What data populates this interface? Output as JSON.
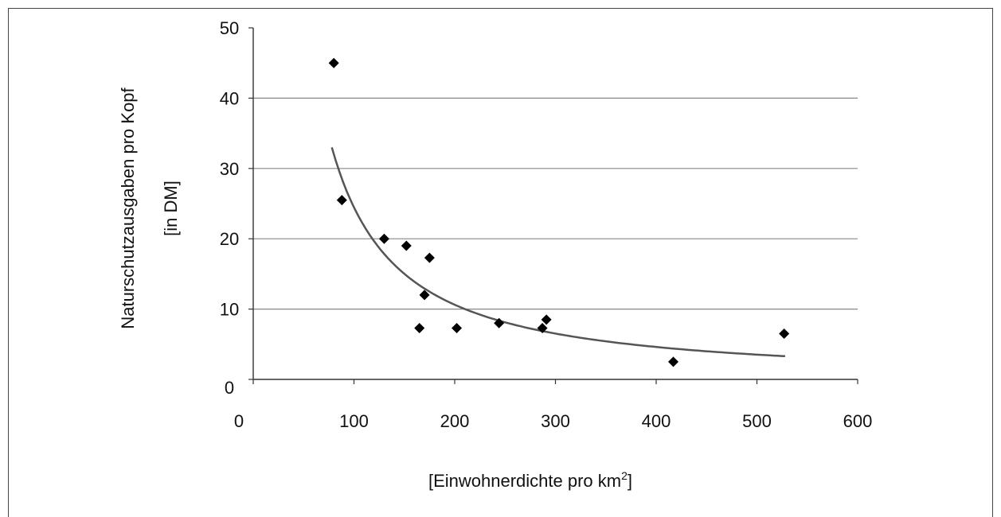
{
  "chart_data": {
    "type": "scatter",
    "title": "",
    "ylabel_line1": "Naturschutzausgaben pro Kopf",
    "ylabel_line2": "[in DM]",
    "xlabel": "[Einwohnerdichte pro km",
    "xlabel_sup": "2",
    "xlabel_end": "]",
    "xlim": [
      0,
      600
    ],
    "ylim": [
      0,
      50
    ],
    "x_ticks": [
      "0",
      "100",
      "200",
      "300",
      "400",
      "500",
      "600"
    ],
    "y_ticks": [
      "0",
      "10",
      "20",
      "30",
      "40",
      "50"
    ],
    "grid": "horizontal",
    "legend": "none",
    "points": [
      {
        "x": 80,
        "y": 45
      },
      {
        "x": 88,
        "y": 25.5
      },
      {
        "x": 130,
        "y": 20
      },
      {
        "x": 152,
        "y": 19
      },
      {
        "x": 165,
        "y": 7.3
      },
      {
        "x": 170,
        "y": 12
      },
      {
        "x": 175,
        "y": 17.3
      },
      {
        "x": 202,
        "y": 7.3
      },
      {
        "x": 244,
        "y": 8
      },
      {
        "x": 287,
        "y": 7.3
      },
      {
        "x": 291,
        "y": 8.5
      },
      {
        "x": 417,
        "y": 2.5
      },
      {
        "x": 527,
        "y": 6.5
      }
    ],
    "trendline": {
      "type": "power",
      "x_start": 78,
      "x_end": 528,
      "y_start": 33,
      "y_end": 3.3
    },
    "colors": {
      "marker": "#000000",
      "grid": "#888888",
      "trend": "#555555"
    }
  }
}
